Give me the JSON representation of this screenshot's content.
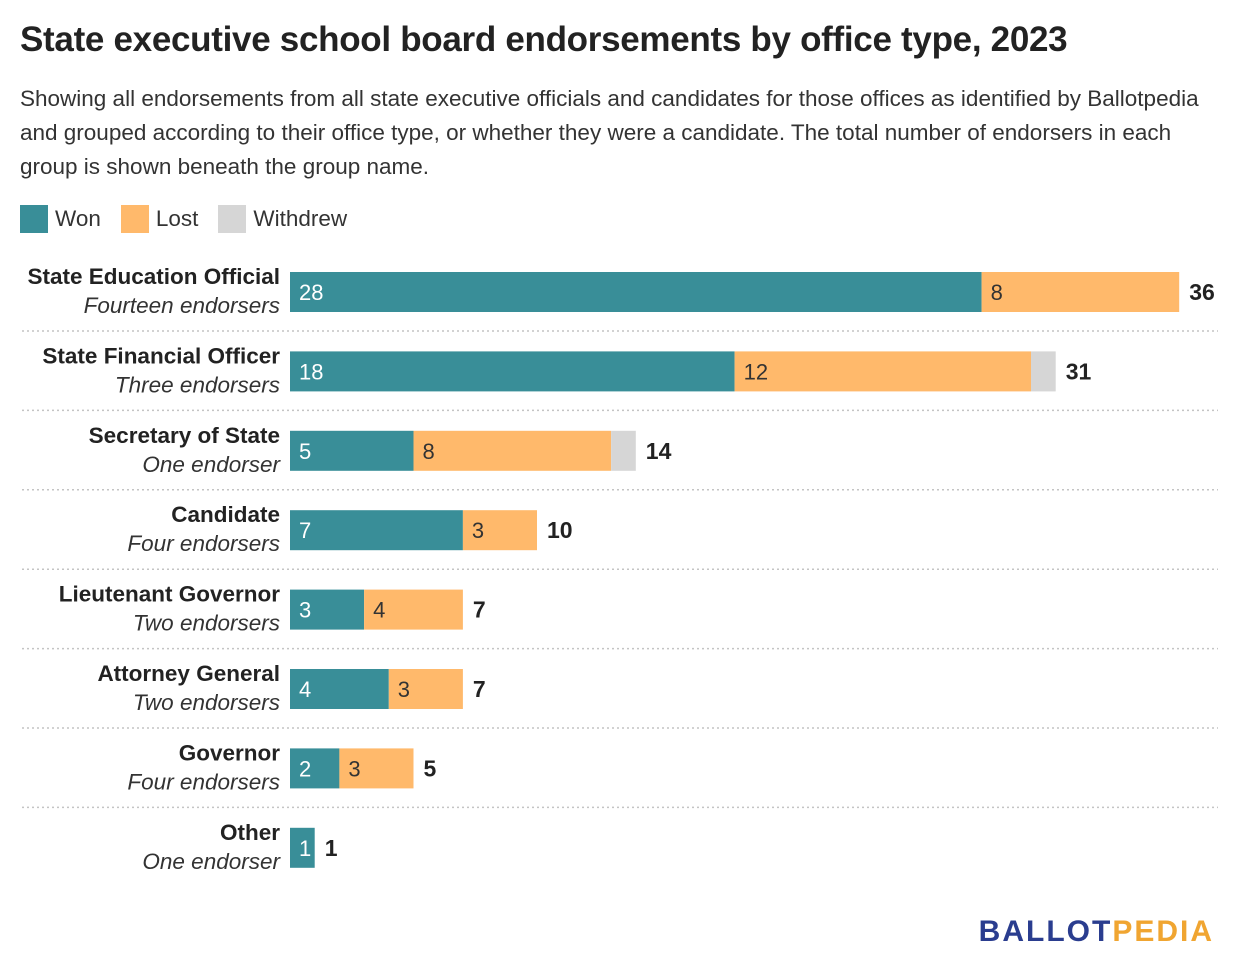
{
  "title": "State executive school board endorsements by office type, 2023",
  "subtitle": "Showing all endorsements from all state executive officials and candidates for those offices as identified by Ballotpedia and grouped according to their office type, or whether they were a candidate. The total number of endorsers in each group is shown beneath the group name.",
  "logo": {
    "part1": "BALLOT",
    "part2": "PEDIA"
  },
  "colors": {
    "won": "#398e98",
    "lost": "#ffb96b",
    "withdrew": "#d6d6d6"
  },
  "chart_data": {
    "type": "bar",
    "orientation": "horizontal",
    "stacked": true,
    "title": "State executive school board endorsements by office type, 2023",
    "legend": [
      "Won",
      "Lost",
      "Withdrew"
    ],
    "legend_position": "top-left",
    "categories": [
      "State Education Official",
      "State Financial Officer",
      "Secretary of State",
      "Candidate",
      "Lieutenant Governor",
      "Attorney General",
      "Governor",
      "Other"
    ],
    "subcategories": [
      "Fourteen endorsers",
      "Three endorsers",
      "One endorser",
      "Four endorsers",
      "Two endorsers",
      "Two endorsers",
      "Four endorsers",
      "One endorser"
    ],
    "series": [
      {
        "name": "Won",
        "values": [
          28,
          18,
          5,
          7,
          3,
          4,
          2,
          1
        ]
      },
      {
        "name": "Lost",
        "values": [
          8,
          12,
          8,
          3,
          4,
          3,
          3,
          0
        ]
      },
      {
        "name": "Withdrew",
        "values": [
          0,
          1,
          1,
          0,
          0,
          0,
          0,
          0
        ]
      }
    ],
    "totals": [
      36,
      31,
      14,
      10,
      7,
      7,
      5,
      1
    ],
    "xlim": [
      0,
      36
    ],
    "grid": false
  }
}
